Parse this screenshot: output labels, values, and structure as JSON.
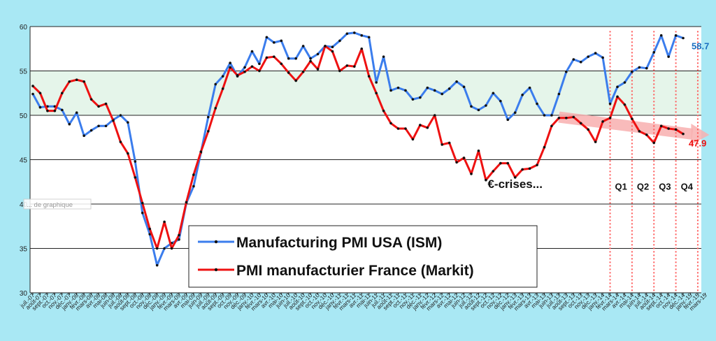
{
  "chart_data": {
    "type": "line",
    "ylim": [
      30,
      60
    ],
    "yticks": [
      30,
      35,
      40,
      45,
      50,
      55,
      60
    ],
    "grid": true,
    "legend_position": "bottom-center",
    "band": {
      "from": 50,
      "to": 55,
      "color": "#e5f5ea"
    },
    "tick_labels": [
      "juil.-07",
      "août-07",
      "sept.-07",
      "oct.-07",
      "nov.-07",
      "déc.-07",
      "janv.-08",
      "févr.-08",
      "mars-08",
      "avr.-08",
      "mai-08",
      "juin-08",
      "juil.-08",
      "août-08",
      "sept.-08",
      "oct.-08",
      "nov.-08",
      "déc.-08",
      "janv.-09",
      "févr.-09",
      "mars-09",
      "avr.-09",
      "mai-09",
      "juin-09",
      "juil.-09",
      "août-09",
      "sept.-09",
      "oct.-09",
      "nov.-09",
      "déc.-09",
      "janv.-10",
      "févr.-10",
      "mars-10",
      "avr.-10",
      "mai-10",
      "juin-10",
      "juil.-10",
      "août-10",
      "sept.-10",
      "oct.-10",
      "nov.-10",
      "déc.-10",
      "janv.-11",
      "févr.-11",
      "mars-11",
      "avr.-11",
      "mai-11",
      "juin-11",
      "juil.-11",
      "août-11",
      "sept.-11",
      "oct.-11",
      "nov.-11",
      "déc.-11",
      "janv.-12",
      "févr.-12",
      "mars-12",
      "avr.-12",
      "mai-12",
      "juin-12",
      "juil.-12",
      "août-12",
      "sept.-12",
      "oct.-12",
      "nov.-12",
      "déc.-12",
      "janv.-13",
      "févr.-13",
      "mars-13",
      "avr.-13",
      "mai-13",
      "juin-13",
      "juil.-13",
      "août-13",
      "sept.-13",
      "oct.-13",
      "nov.-13",
      "déc.-13",
      "janv.-14",
      "févr.-14",
      "mars-14",
      "avr.-14",
      "mai-14",
      "juin-14",
      "juil.-14",
      "août-14",
      "sept.-14",
      "oct.-14",
      "nov.-14",
      "déc.-14",
      "janv.-15",
      "févr.-15",
      "mars-15"
    ],
    "series": [
      {
        "name": "Manufacturing PMI USA (ISM)",
        "color": "#3b7ded",
        "values": [
          52.4,
          50.9,
          51.0,
          51.0,
          50.6,
          49.0,
          50.3,
          47.7,
          48.3,
          48.8,
          48.8,
          49.5,
          50.0,
          49.2,
          44.8,
          39.0,
          36.6,
          33.1,
          35.0,
          35.6,
          36.0,
          40.1,
          42.0,
          45.8,
          49.8,
          53.5,
          54.4,
          55.9,
          54.4,
          55.4,
          57.2,
          55.8,
          58.8,
          58.2,
          58.4,
          56.4,
          56.4,
          57.8,
          56.4,
          56.9,
          57.8,
          57.7,
          58.4,
          59.2,
          59.3,
          59.0,
          58.8,
          53.7,
          56.6,
          52.8,
          53.1,
          52.8,
          51.8,
          52.0,
          53.1,
          52.8,
          52.4,
          53.0,
          53.8,
          53.2,
          51.0,
          50.6,
          51.1,
          52.5,
          51.6,
          49.5,
          50.3,
          52.3,
          53.1,
          51.3,
          50.0,
          50.0,
          52.4,
          54.9,
          56.3,
          56.0,
          56.6,
          57.0,
          56.5,
          51.3,
          53.2,
          53.7,
          54.9,
          55.4,
          55.3,
          57.1,
          59.0,
          56.6,
          59.0,
          58.7
        ],
        "end_label": "58.7"
      },
      {
        "name": "PMI manufacturier France (Markit)",
        "color": "#ee1111",
        "values": [
          53.3,
          52.5,
          50.5,
          50.5,
          52.5,
          53.8,
          54.0,
          53.8,
          51.8,
          51.0,
          51.3,
          49.4,
          47.0,
          45.7,
          43.0,
          40.1,
          37.2,
          35.0,
          38.0,
          35.0,
          36.5,
          40.2,
          43.3,
          45.9,
          48.2,
          50.8,
          53.0,
          55.4,
          54.5,
          54.9,
          55.5,
          55.0,
          56.5,
          56.6,
          55.8,
          54.8,
          53.9,
          54.9,
          56.1,
          55.2,
          57.8,
          57.2,
          55.0,
          55.6,
          55.5,
          57.5,
          54.4,
          52.5,
          50.5,
          49.1,
          48.5,
          48.5,
          47.3,
          48.9,
          48.6,
          50.0,
          46.7,
          46.9,
          44.7,
          45.2,
          43.4,
          46.0,
          42.7,
          43.7,
          44.6,
          44.6,
          43.0,
          43.9,
          44.0,
          44.4,
          46.4,
          48.8,
          49.7,
          49.7,
          49.8,
          49.1,
          48.4,
          47.0,
          49.3,
          49.7,
          52.1,
          51.2,
          49.6,
          48.2,
          47.8,
          46.9,
          48.8,
          48.5,
          48.4,
          47.9
        ],
        "end_label": "47.9"
      }
    ],
    "annotations": [
      {
        "text": "€-crises...",
        "x_index": 66,
        "y": 41.8
      },
      {
        "text": "Q1",
        "x_index": 80.5,
        "y": 41.6
      },
      {
        "text": "Q2",
        "x_index": 83.5,
        "y": 41.6
      },
      {
        "text": "Q3",
        "x_index": 86.5,
        "y": 41.6
      },
      {
        "text": "Q4",
        "x_index": 89.5,
        "y": 41.6
      }
    ],
    "quarter_markers_x_index": [
      79,
      82,
      85,
      88,
      91
    ],
    "trend_arrow": {
      "from_index": 72,
      "from_y": 49.8,
      "to_index": 92,
      "to_y": 47.8,
      "color": "#f8b0b0"
    },
    "overlay_fragment": "... de graphique"
  }
}
